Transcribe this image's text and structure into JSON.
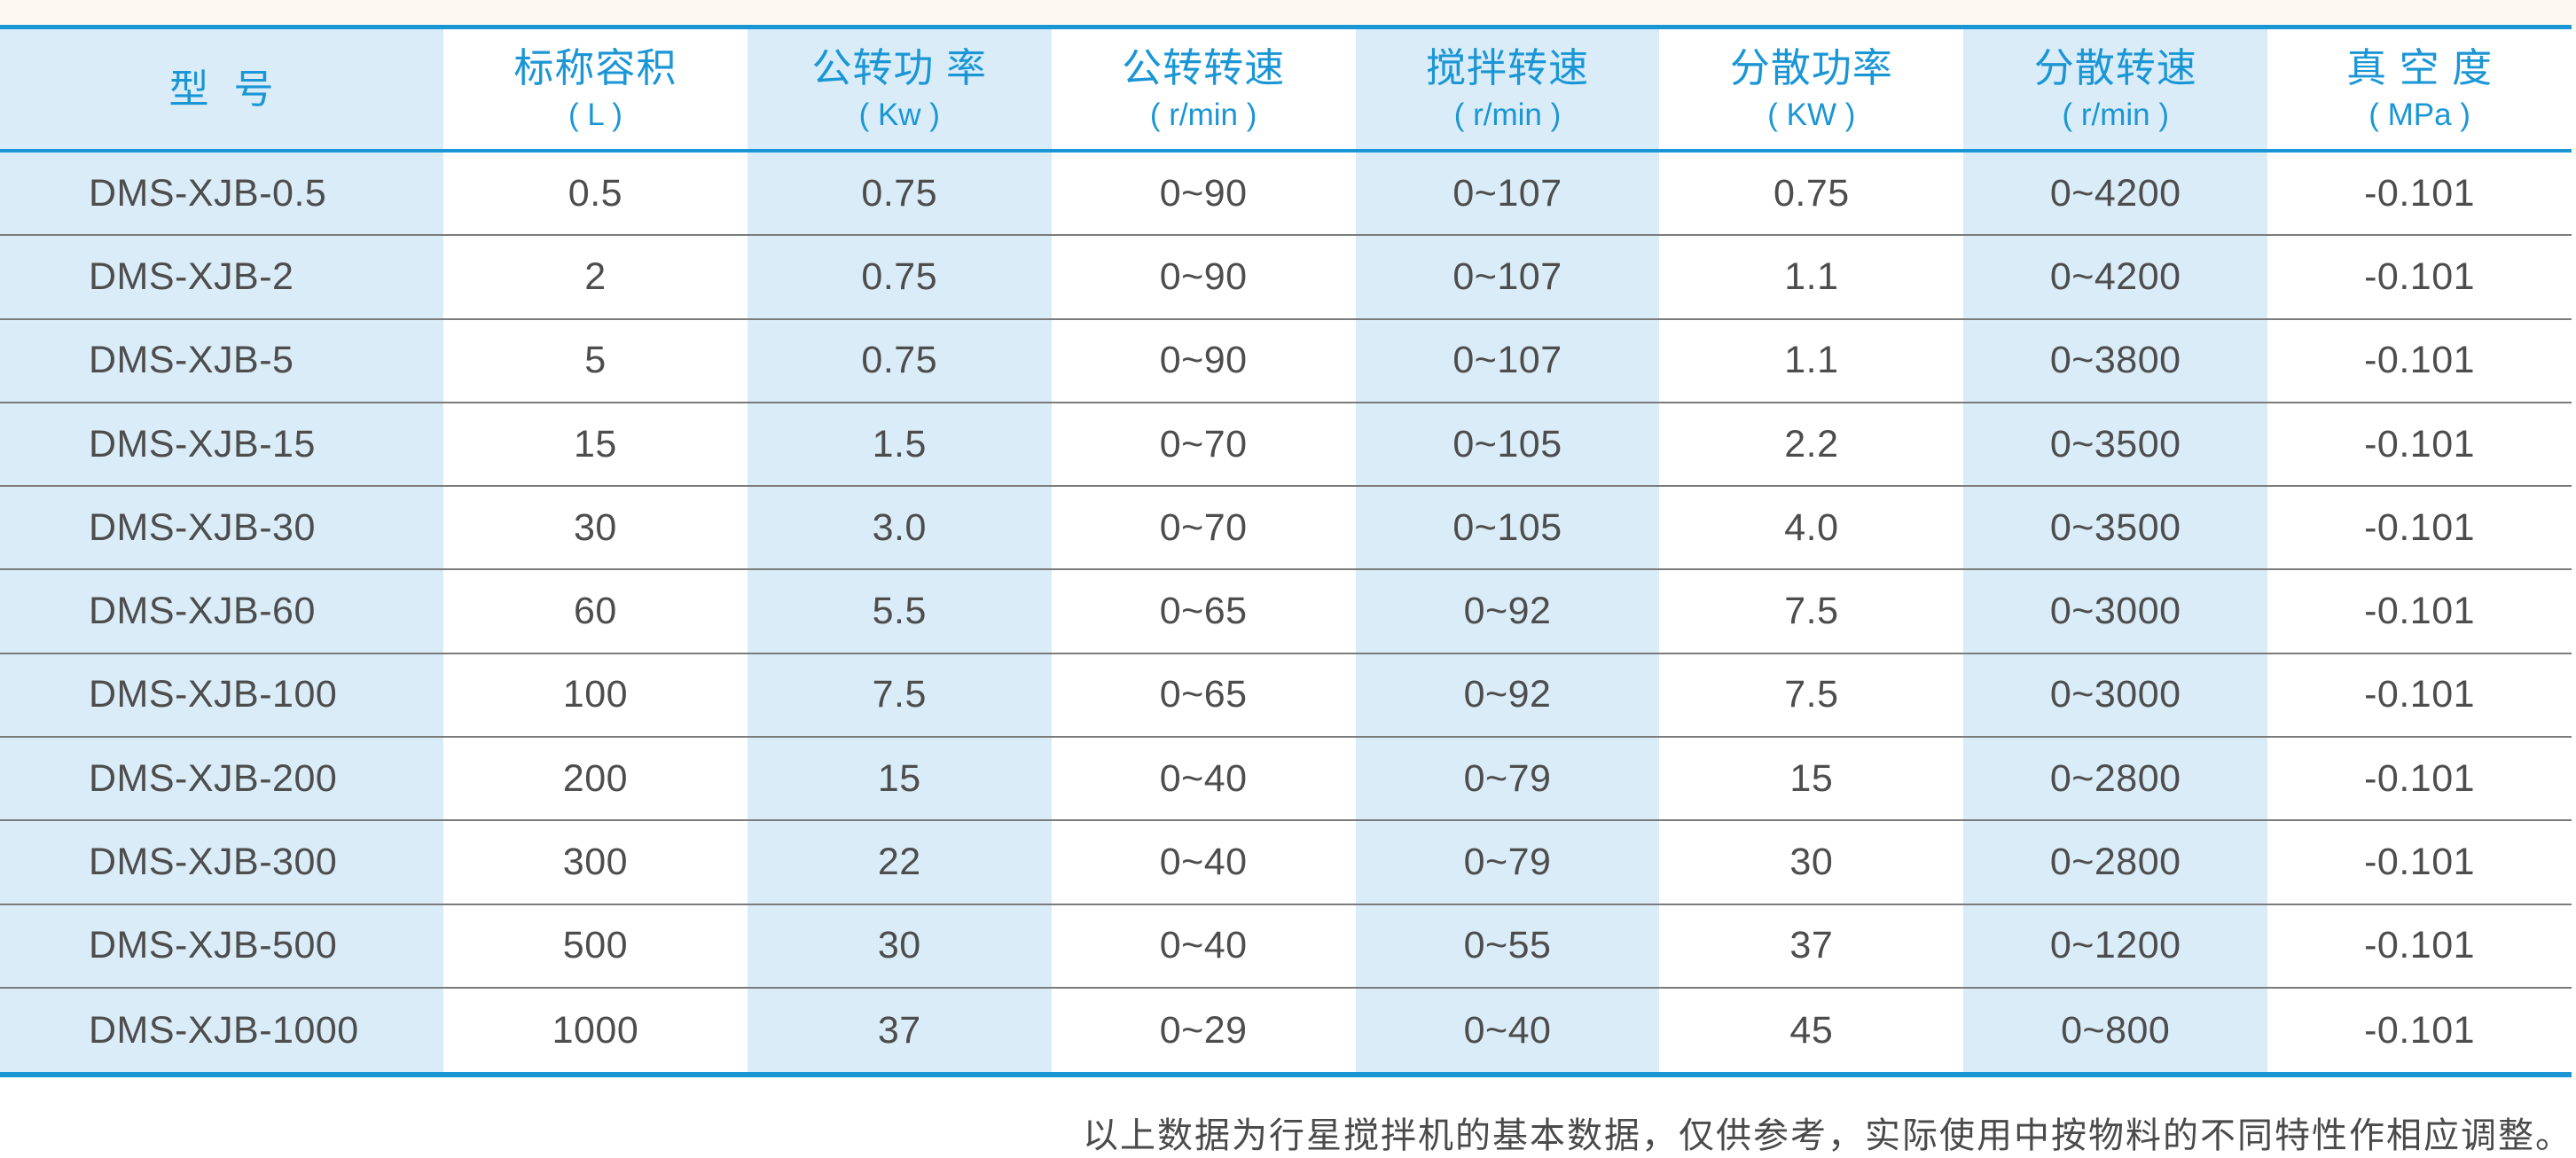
{
  "table": {
    "title_semantic": "planetary-mixer-specifications",
    "columns": [
      {
        "label": "型  号",
        "unit": ""
      },
      {
        "label": "标称容积",
        "unit": "( L )"
      },
      {
        "label": "公转功 率",
        "unit": "( Kw )"
      },
      {
        "label": "公转转速",
        "unit": "( r/min )"
      },
      {
        "label": "搅拌转速",
        "unit": "( r/min )"
      },
      {
        "label": "分散功率",
        "unit": "( KW )"
      },
      {
        "label": "分散转速",
        "unit": "( r/min )"
      },
      {
        "label": "真 空 度",
        "unit": "( MPa )"
      }
    ],
    "rows": [
      [
        "DMS-XJB-0.5",
        "0.5",
        "0.75",
        "0~90",
        "0~107",
        "0.75",
        "0~4200",
        "-0.101"
      ],
      [
        "DMS-XJB-2",
        "2",
        "0.75",
        "0~90",
        "0~107",
        "1.1",
        "0~4200",
        "-0.101"
      ],
      [
        "DMS-XJB-5",
        "5",
        "0.75",
        "0~90",
        "0~107",
        "1.1",
        "0~3800",
        "-0.101"
      ],
      [
        "DMS-XJB-15",
        "15",
        "1.5",
        "0~70",
        "0~105",
        "2.2",
        "0~3500",
        "-0.101"
      ],
      [
        "DMS-XJB-30",
        "30",
        "3.0",
        "0~70",
        "0~105",
        "4.0",
        "0~3500",
        "-0.101"
      ],
      [
        "DMS-XJB-60",
        "60",
        "5.5",
        "0~65",
        "0~92",
        "7.5",
        "0~3000",
        "-0.101"
      ],
      [
        "DMS-XJB-100",
        "100",
        "7.5",
        "0~65",
        "0~92",
        "7.5",
        "0~3000",
        "-0.101"
      ],
      [
        "DMS-XJB-200",
        "200",
        "15",
        "0~40",
        "0~79",
        "15",
        "0~2800",
        "-0.101"
      ],
      [
        "DMS-XJB-300",
        "300",
        "22",
        "0~40",
        "0~79",
        "30",
        "0~2800",
        "-0.101"
      ],
      [
        "DMS-XJB-500",
        "500",
        "30",
        "0~40",
        "0~55",
        "37",
        "0~1200",
        "-0.101"
      ],
      [
        "DMS-XJB-1000",
        "1000",
        "37",
        "0~29",
        "0~40",
        "45",
        "0~800",
        "-0.101"
      ]
    ]
  },
  "footnote": "以上数据为行星搅拌机的基本数据，仅供参考，实际使用中按物料的不同特性作相应调整。",
  "colors": {
    "accent": "#1b96d5",
    "light_blue_column": "#d9ecf8",
    "row_separator": "#7b7b7b",
    "data_text": "#4d4d4d"
  }
}
